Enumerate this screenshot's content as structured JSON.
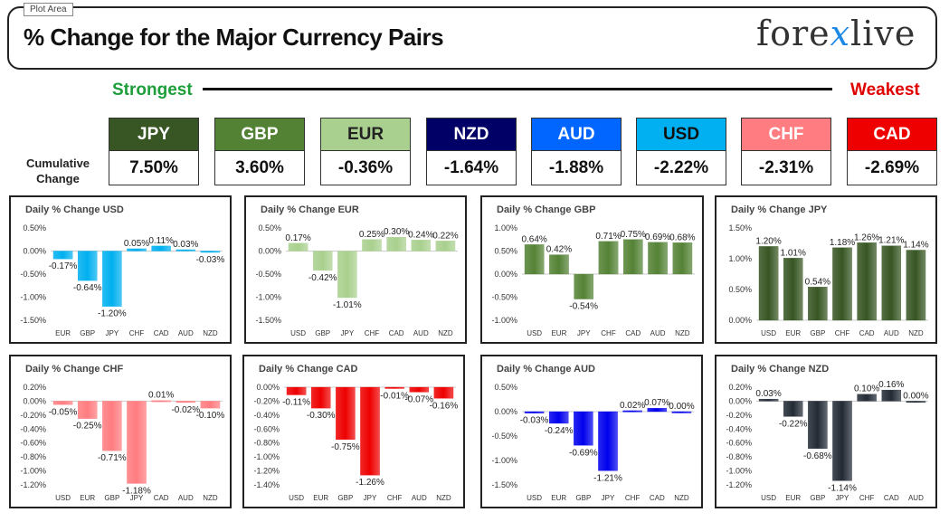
{
  "header": {
    "plot_area_label": "Plot Area",
    "title": "% Change for the Major Currency Pairs",
    "logo_left": "fore",
    "logo_mid": "x",
    "logo_right": "live"
  },
  "strongest_label": "Strongest",
  "weakest_label": "Weakest",
  "cumulative_label": [
    "Cumulative",
    "Change"
  ],
  "currencies": [
    {
      "name": "JPY",
      "value": "7.50%",
      "bg": "#375623",
      "fg": "#ffffff"
    },
    {
      "name": "GBP",
      "value": "3.60%",
      "bg": "#548235",
      "fg": "#ffffff"
    },
    {
      "name": "EUR",
      "value": "-0.36%",
      "bg": "#a9d08e",
      "fg": "#222222"
    },
    {
      "name": "NZD",
      "value": "-1.64%",
      "bg": "#000066",
      "fg": "#ffffff"
    },
    {
      "name": "AUD",
      "value": "-1.88%",
      "bg": "#0066ff",
      "fg": "#ffffff"
    },
    {
      "name": "USD",
      "value": "-2.22%",
      "bg": "#00b0f0",
      "fg": "#111111"
    },
    {
      "name": "CHF",
      "value": "-2.31%",
      "bg": "#ff7c80",
      "fg": "#ffffff"
    },
    {
      "name": "CAD",
      "value": "-2.69%",
      "bg": "#ee0000",
      "fg": "#ffffff"
    }
  ],
  "chart_data": [
    {
      "type": "bar",
      "title": "Daily % Change USD",
      "color": "#00b0f0",
      "categories": [
        "EUR",
        "GBP",
        "JPY",
        "CHF",
        "CAD",
        "AUD",
        "NZD"
      ],
      "values": [
        -0.17,
        -0.64,
        -1.2,
        0.05,
        0.11,
        0.03,
        -0.03
      ],
      "ylim": [
        -1.5,
        0.5
      ],
      "ticks": [
        0.5,
        0,
        -0.5,
        -1,
        -1.5
      ],
      "tick_labels": [
        "0.50%",
        "0.00%",
        "-0.50%",
        "-1.00%",
        "-1.50%"
      ]
    },
    {
      "type": "bar",
      "title": "Daily % Change EUR",
      "color": "#a9d08e",
      "categories": [
        "USD",
        "GBP",
        "JPY",
        "CHF",
        "CAD",
        "AUD",
        "NZD"
      ],
      "values": [
        0.17,
        -0.42,
        -1.01,
        0.25,
        0.3,
        0.24,
        0.22
      ],
      "ylim": [
        -1.5,
        0.5
      ],
      "ticks": [
        0.5,
        0,
        -0.5,
        -1,
        -1.5
      ],
      "tick_labels": [
        "0.50%",
        "0.00%",
        "-0.50%",
        "-1.00%",
        "-1.50%"
      ]
    },
    {
      "type": "bar",
      "title": "Daily % Change GBP",
      "color": "#548235",
      "categories": [
        "USD",
        "EUR",
        "JPY",
        "CHF",
        "CAD",
        "AUD",
        "NZD"
      ],
      "values": [
        0.64,
        0.42,
        -0.54,
        0.71,
        0.75,
        0.69,
        0.68
      ],
      "ylim": [
        -1.0,
        1.0
      ],
      "ticks": [
        1,
        0.5,
        0,
        -0.5,
        -1
      ],
      "tick_labels": [
        "1.00%",
        "0.50%",
        "0.00%",
        "-0.50%",
        "-1.00%"
      ]
    },
    {
      "type": "bar",
      "title": "Daily % Change JPY",
      "color": "#375623",
      "categories": [
        "USD",
        "EUR",
        "GBP",
        "CHF",
        "CAD",
        "AUD",
        "NZD"
      ],
      "values": [
        1.2,
        1.01,
        0.54,
        1.18,
        1.26,
        1.21,
        1.14
      ],
      "ylim": [
        0,
        1.5
      ],
      "ticks": [
        1.5,
        1,
        0.5,
        0
      ],
      "tick_labels": [
        "1.50%",
        "1.00%",
        "0.50%",
        "0.00%"
      ]
    },
    {
      "type": "bar",
      "title": "Daily % Change CHF",
      "color": "#ff7c80",
      "categories": [
        "USD",
        "EUR",
        "GBP",
        "JPY",
        "CAD",
        "AUD",
        "NZD"
      ],
      "values": [
        -0.05,
        -0.25,
        -0.71,
        -1.18,
        0.01,
        -0.02,
        -0.1
      ],
      "ylim": [
        -1.2,
        0.2
      ],
      "ticks": [
        0.2,
        0,
        -0.2,
        -0.4,
        -0.6,
        -0.8,
        -1,
        -1.2
      ],
      "tick_labels": [
        "0.20%",
        "0.00%",
        "-0.20%",
        "-0.40%",
        "-0.60%",
        "-0.80%",
        "-1.00%",
        "-1.20%"
      ]
    },
    {
      "type": "bar",
      "title": "Daily % Change CAD",
      "color": "#ee0000",
      "categories": [
        "USD",
        "EUR",
        "GBP",
        "JPY",
        "CHF",
        "AUD",
        "NZD"
      ],
      "values": [
        -0.11,
        -0.3,
        -0.75,
        -1.26,
        -0.01,
        -0.07,
        -0.16
      ],
      "ylim": [
        -1.4,
        0
      ],
      "ticks": [
        0,
        -0.2,
        -0.4,
        -0.6,
        -0.8,
        -1,
        -1.2,
        -1.4
      ],
      "tick_labels": [
        "0.00%",
        "-0.20%",
        "-0.40%",
        "-0.60%",
        "-0.80%",
        "-1.00%",
        "-1.20%",
        "-1.40%"
      ]
    },
    {
      "type": "bar",
      "title": "Daily % Change AUD",
      "color": "#0000ee",
      "categories": [
        "USD",
        "EUR",
        "GBP",
        "JPY",
        "CHF",
        "CAD",
        "NZD"
      ],
      "values": [
        -0.03,
        -0.24,
        -0.69,
        -1.21,
        0.02,
        0.07,
        0.0
      ],
      "ylim": [
        -1.5,
        0.5
      ],
      "ticks": [
        0.5,
        0,
        -0.5,
        -1,
        -1.5
      ],
      "tick_labels": [
        "0.50%",
        "0.00%",
        "-0.50%",
        "-1.00%",
        "-1.50%"
      ]
    },
    {
      "type": "bar",
      "title": "Daily % Change NZD",
      "color": "#222a35",
      "categories": [
        "USD",
        "EUR",
        "GBP",
        "JPY",
        "CHF",
        "CAD",
        "AUD"
      ],
      "values": [
        0.03,
        -0.22,
        -0.68,
        -1.14,
        0.1,
        0.16,
        0.0
      ],
      "ylim": [
        -1.2,
        0.2
      ],
      "ticks": [
        0.2,
        0,
        -0.2,
        -0.4,
        -0.6,
        -0.8,
        -1,
        -1.2
      ],
      "tick_labels": [
        "0.20%",
        "0.00%",
        "-0.20%",
        "-0.40%",
        "-0.60%",
        "-0.80%",
        "-1.00%",
        "-1.20%"
      ]
    }
  ]
}
